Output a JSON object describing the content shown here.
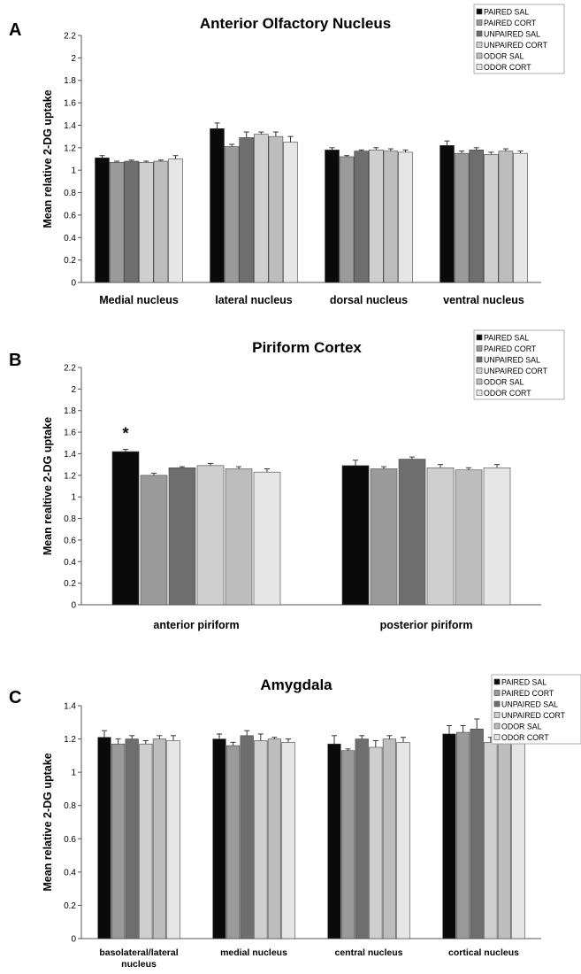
{
  "series_names": [
    "PAIRED SAL",
    "PAIRED CORT",
    "UNPAIRED SAL",
    "UNPAIRED CORT",
    "ODOR SAL",
    "ODOR CORT"
  ],
  "series_colors": [
    "#0a0a0a",
    "#9a9a9a",
    "#6e6e6e",
    "#cfcfcf",
    "#bdbdbd",
    "#e6e6e6"
  ],
  "chart_data": [
    {
      "panel_letter": "A",
      "type": "bar",
      "title": "Anterior Olfactory Nucleus",
      "ylabel": "Mean relative 2-DG uptake",
      "ylim": [
        0,
        2.2
      ],
      "yticks": [
        "0",
        "0.2",
        "0.4",
        "0.6",
        "0.8",
        "1",
        "1.2",
        "1.4",
        "1.6",
        "1.8",
        "2",
        "2.2"
      ],
      "categories": [
        [
          "Medial nucleus"
        ],
        [
          "lateral nucleus"
        ],
        [
          "dorsal nucleus"
        ],
        [
          "ventral nucleus"
        ]
      ],
      "series": [
        {
          "name": "PAIRED SAL",
          "values": [
            1.11,
            1.37,
            1.18,
            1.22
          ],
          "errors": [
            0.02,
            0.05,
            0.02,
            0.04
          ]
        },
        {
          "name": "PAIRED CORT",
          "values": [
            1.07,
            1.21,
            1.12,
            1.15
          ],
          "errors": [
            0.01,
            0.02,
            0.01,
            0.02
          ]
        },
        {
          "name": "UNPAIRED SAL",
          "values": [
            1.08,
            1.29,
            1.17,
            1.18
          ],
          "errors": [
            0.01,
            0.05,
            0.01,
            0.02
          ]
        },
        {
          "name": "UNPAIRED CORT",
          "values": [
            1.07,
            1.32,
            1.18,
            1.14
          ],
          "errors": [
            0.01,
            0.02,
            0.02,
            0.02
          ]
        },
        {
          "name": "ODOR SAL",
          "values": [
            1.08,
            1.3,
            1.17,
            1.17
          ],
          "errors": [
            0.01,
            0.04,
            0.02,
            0.02
          ]
        },
        {
          "name": "ODOR CORT",
          "values": [
            1.1,
            1.25,
            1.16,
            1.15
          ],
          "errors": [
            0.03,
            0.05,
            0.02,
            0.02
          ]
        }
      ],
      "annotations": [],
      "legend_position": "top-right"
    },
    {
      "panel_letter": "B",
      "type": "bar",
      "title": "Piriform Cortex",
      "ylabel": "Mean realtive 2-DG uptake",
      "ylim": [
        0,
        2.2
      ],
      "yticks": [
        "0",
        "0.2",
        "0.4",
        "0.6",
        "0.8",
        "1",
        "1.2",
        "1.4",
        "1.6",
        "1.8",
        "2",
        "2.2"
      ],
      "categories": [
        [
          "anterior piriform"
        ],
        [
          "posterior piriform"
        ]
      ],
      "series": [
        {
          "name": "PAIRED SAL",
          "values": [
            1.42,
            1.29
          ],
          "errors": [
            0.02,
            0.05
          ]
        },
        {
          "name": "PAIRED CORT",
          "values": [
            1.2,
            1.26
          ],
          "errors": [
            0.02,
            0.02
          ]
        },
        {
          "name": "UNPAIRED SAL",
          "values": [
            1.27,
            1.35
          ],
          "errors": [
            0.01,
            0.02
          ]
        },
        {
          "name": "UNPAIRED CORT",
          "values": [
            1.29,
            1.27
          ],
          "errors": [
            0.02,
            0.03
          ]
        },
        {
          "name": "ODOR SAL",
          "values": [
            1.26,
            1.25
          ],
          "errors": [
            0.02,
            0.02
          ]
        },
        {
          "name": "ODOR CORT",
          "values": [
            1.23,
            1.27
          ],
          "errors": [
            0.03,
            0.03
          ]
        }
      ],
      "annotations": [
        {
          "text": "*",
          "category_index": 0,
          "series_index": 0
        }
      ],
      "legend_position": "top-right"
    },
    {
      "panel_letter": "C",
      "type": "bar",
      "title": "Amygdala",
      "ylabel": "Mean relative 2-DG uptake",
      "ylim": [
        0,
        1.4
      ],
      "yticks": [
        "0",
        "0.2",
        "0.4",
        "0.6",
        "0.8",
        "1",
        "1.2",
        "1.4"
      ],
      "categories": [
        [
          "basolateral/lateral",
          "nucleus"
        ],
        [
          "medial nucleus"
        ],
        [
          "central nucleus"
        ],
        [
          "cortical nucleus"
        ]
      ],
      "series": [
        {
          "name": "PAIRED SAL",
          "values": [
            1.21,
            1.2,
            1.17,
            1.23
          ],
          "errors": [
            0.04,
            0.03,
            0.05,
            0.05
          ]
        },
        {
          "name": "PAIRED CORT",
          "values": [
            1.17,
            1.16,
            1.13,
            1.24
          ],
          "errors": [
            0.03,
            0.02,
            0.01,
            0.04
          ]
        },
        {
          "name": "UNPAIRED SAL",
          "values": [
            1.2,
            1.22,
            1.2,
            1.26
          ],
          "errors": [
            0.02,
            0.03,
            0.02,
            0.06
          ]
        },
        {
          "name": "UNPAIRED CORT",
          "values": [
            1.17,
            1.19,
            1.15,
            1.18
          ],
          "errors": [
            0.02,
            0.04,
            0.04,
            0.03
          ]
        },
        {
          "name": "ODOR SAL",
          "values": [
            1.2,
            1.2,
            1.2,
            1.2
          ],
          "errors": [
            0.02,
            0.01,
            0.02,
            0.04
          ]
        },
        {
          "name": "ODOR CORT",
          "values": [
            1.19,
            1.18,
            1.18,
            1.21
          ],
          "errors": [
            0.03,
            0.02,
            0.03,
            0.04
          ]
        }
      ],
      "annotations": [],
      "legend_position": "top-right"
    }
  ]
}
